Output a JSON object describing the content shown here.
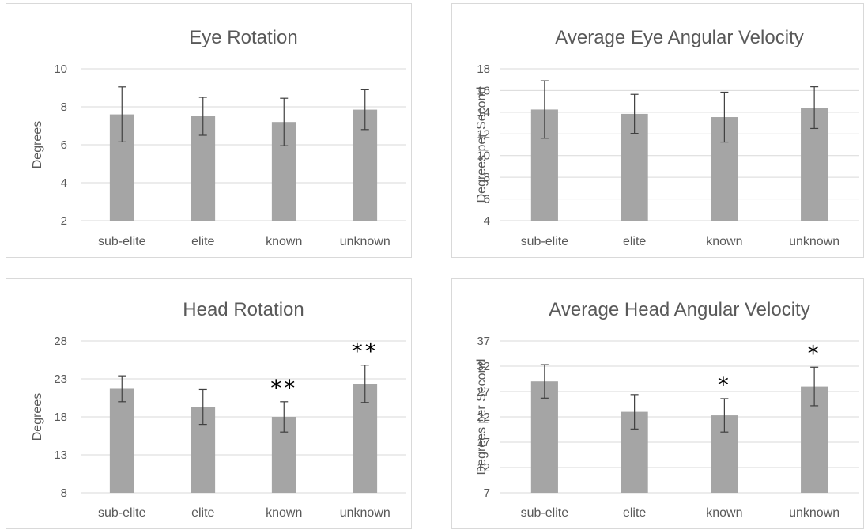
{
  "chart_data": [
    {
      "type": "bar",
      "title": "Eye Rotation",
      "ylabel": "Degrees",
      "xlabel": "",
      "categories": [
        "sub-elite",
        "elite",
        "known",
        "unknown"
      ],
      "values": [
        7.6,
        7.5,
        7.2,
        7.85
      ],
      "error_low": [
        6.15,
        6.5,
        5.95,
        6.8
      ],
      "error_high": [
        9.05,
        8.5,
        8.45,
        8.9
      ],
      "annotations": [
        "",
        "",
        "",
        ""
      ],
      "ylim": [
        2,
        10
      ],
      "yticks": [
        2,
        4,
        6,
        8,
        10
      ],
      "ytick_labels": [
        "2",
        "4",
        "6",
        "8",
        "10"
      ],
      "grid": true,
      "bar_color": "#a5a5a5"
    },
    {
      "type": "bar",
      "title": "Average Eye Angular Velocity",
      "ylabel": "Degrees per Second",
      "xlabel": "",
      "categories": [
        "sub-elite",
        "elite",
        "known",
        "unknown"
      ],
      "values": [
        14.25,
        13.85,
        13.55,
        14.4
      ],
      "error_low": [
        11.6,
        12.05,
        11.25,
        12.5
      ],
      "error_high": [
        16.9,
        15.65,
        15.85,
        16.35
      ],
      "annotations": [
        "",
        "",
        "",
        ""
      ],
      "ylim": [
        4,
        18
      ],
      "yticks": [
        4,
        6,
        8,
        10,
        12,
        14,
        16,
        18
      ],
      "ytick_labels": [
        "4",
        "6",
        "8",
        "10",
        "12",
        "14",
        "16",
        "18"
      ],
      "grid": true,
      "bar_color": "#a5a5a5"
    },
    {
      "type": "bar",
      "title": "Head Rotation",
      "ylabel": "Degrees",
      "xlabel": "",
      "categories": [
        "sub-elite",
        "elite",
        "known",
        "unknown"
      ],
      "values": [
        21.7,
        19.3,
        18.0,
        22.3
      ],
      "error_low": [
        20.0,
        17.0,
        16.0,
        19.9
      ],
      "error_high": [
        23.4,
        21.6,
        20.0,
        24.8
      ],
      "annotations": [
        "",
        "",
        "**",
        "**"
      ],
      "ylim": [
        8,
        28
      ],
      "yticks": [
        8,
        13,
        18,
        23,
        28
      ],
      "ytick_labels": [
        "8",
        "13",
        "18",
        "23",
        "28"
      ],
      "grid": true,
      "bar_color": "#a5a5a5"
    },
    {
      "type": "bar",
      "title": "Average Head Angular Velocity",
      "ylabel": "Degrees per Second",
      "xlabel": "",
      "categories": [
        "sub-elite",
        "elite",
        "known",
        "unknown"
      ],
      "values": [
        29.0,
        23.0,
        22.3,
        28.0
      ],
      "error_low": [
        25.7,
        19.6,
        19.0,
        24.2
      ],
      "error_high": [
        32.3,
        26.4,
        25.6,
        31.8
      ],
      "annotations": [
        "",
        "",
        "*",
        "*"
      ],
      "ylim": [
        7,
        37
      ],
      "yticks": [
        7,
        12,
        17,
        22,
        27,
        32,
        37
      ],
      "ytick_labels": [
        "7",
        "12",
        "17",
        "22",
        "27",
        "32",
        "37"
      ],
      "grid": true,
      "bar_color": "#a5a5a5"
    }
  ]
}
